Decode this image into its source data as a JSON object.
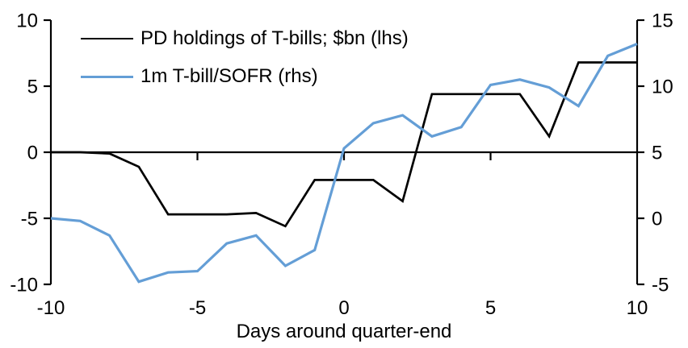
{
  "chart_data": {
    "type": "line",
    "title": "",
    "xlabel": "Days around quarter-end",
    "grid": false,
    "legend_position": "top-left-inside",
    "background_color": "#ffffff",
    "axis_color": "#000000",
    "x": [
      -10,
      -9,
      -8,
      -7,
      -6,
      -5,
      -4,
      -3,
      -2,
      -1,
      0,
      1,
      2,
      3,
      4,
      5,
      6,
      7,
      8,
      9,
      10
    ],
    "x_axis": {
      "ticks": [
        -10,
        -5,
        0,
        5,
        10
      ],
      "range": [
        -10,
        10
      ],
      "zero_line_ticks": [
        -5,
        0,
        5
      ]
    },
    "left_axis": {
      "ticks": [
        10,
        5,
        0,
        -5,
        -10
      ],
      "range": [
        -10,
        10
      ]
    },
    "right_axis": {
      "ticks": [
        15,
        10,
        5,
        0,
        -5
      ],
      "range": [
        -5,
        15
      ]
    },
    "series": [
      {
        "name": "PD holdings of T-bills; $bn (lhs)",
        "axis": "left",
        "color": "#000000",
        "values": [
          0,
          0,
          -0.1,
          -1.1,
          -4.7,
          -4.7,
          -4.7,
          -4.6,
          -5.6,
          -2.1,
          -2.1,
          -2.1,
          -3.7,
          4.4,
          4.4,
          4.4,
          4.4,
          1.2,
          6.8,
          6.8,
          6.8
        ]
      },
      {
        "name": "1m T-bill/SOFR (rhs)",
        "axis": "right",
        "color": "#649ED6",
        "values": [
          0.0,
          -0.2,
          -1.3,
          -4.8,
          -4.1,
          -4.0,
          -1.9,
          -1.3,
          -3.6,
          -2.4,
          5.3,
          7.2,
          7.8,
          6.2,
          6.9,
          10.1,
          10.5,
          9.9,
          8.5,
          12.3,
          13.2
        ]
      }
    ]
  }
}
